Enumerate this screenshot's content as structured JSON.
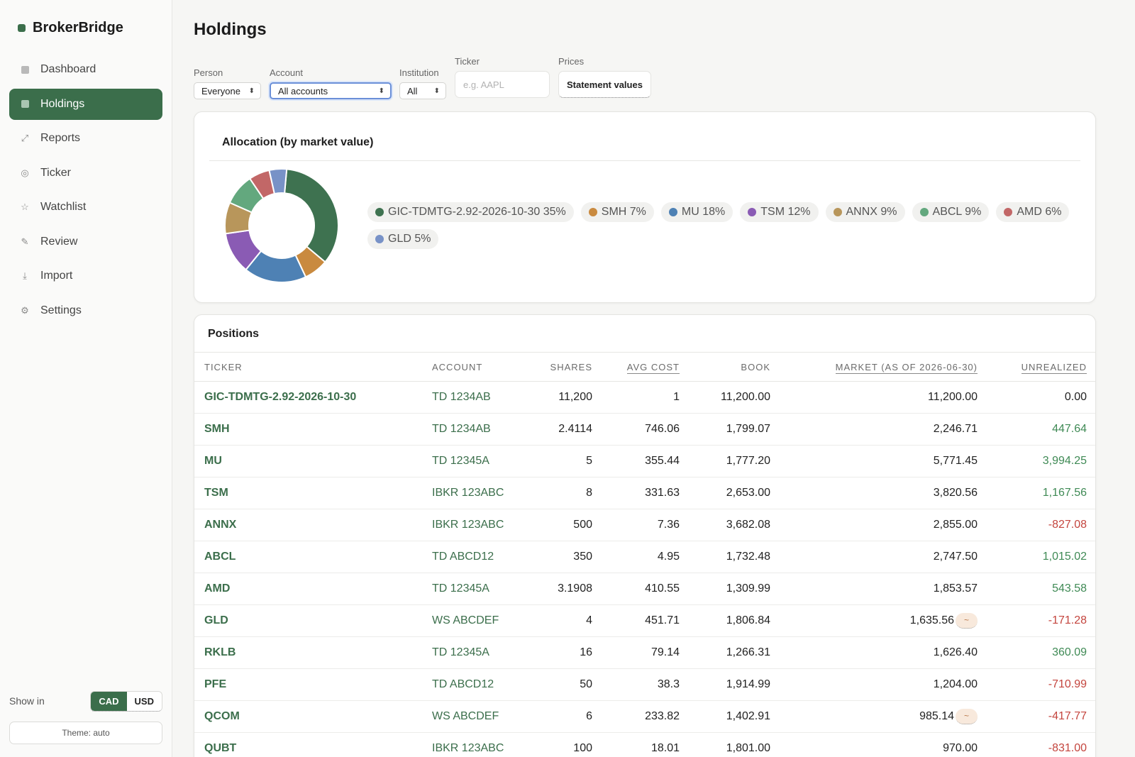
{
  "brand": "BrokerBridge",
  "sidebar": {
    "items": [
      {
        "label": "Dashboard",
        "icon": "square-icon"
      },
      {
        "label": "Holdings",
        "icon": "square-icon",
        "active": true
      },
      {
        "label": "Reports",
        "icon": "trend-icon"
      },
      {
        "label": "Ticker",
        "icon": "circle-icon"
      },
      {
        "label": "Watchlist",
        "icon": "star-icon"
      },
      {
        "label": "Review",
        "icon": "pencil-icon"
      },
      {
        "label": "Import",
        "icon": "download-icon"
      },
      {
        "label": "Settings",
        "icon": "gear-icon"
      }
    ],
    "show_in_label": "Show in",
    "currency": {
      "cad": "CAD",
      "usd": "USD",
      "selected": "CAD"
    },
    "theme": "Theme: auto"
  },
  "page": {
    "title": "Holdings"
  },
  "filters": {
    "person": {
      "label": "Person",
      "value": "Everyone"
    },
    "account": {
      "label": "Account",
      "value": "All accounts"
    },
    "institution": {
      "label": "Institution",
      "value": "All"
    },
    "ticker": {
      "label": "Ticker",
      "placeholder": "e.g. AAPL"
    },
    "prices": {
      "label": "Prices",
      "value": "Statement values"
    }
  },
  "allocation": {
    "title": "Allocation (by market value)",
    "legend": [
      {
        "text": "GIC-TDMTG-2.92-2026-10-30 35%",
        "color": "#3e7250"
      },
      {
        "text": "SMH 7%",
        "color": "#c98a3f"
      },
      {
        "text": "MU 18%",
        "color": "#4e81b4"
      },
      {
        "text": "TSM 12%",
        "color": "#8a5bb4"
      },
      {
        "text": "ANNX 9%",
        "color": "#b8965b"
      },
      {
        "text": "ABCL 9%",
        "color": "#63a87e"
      },
      {
        "text": "AMD 6%",
        "color": "#c26767"
      },
      {
        "text": "GLD 5%",
        "color": "#7892c7"
      }
    ]
  },
  "chart_data": {
    "type": "pie",
    "title": "Allocation (by market value)",
    "categories": [
      "GIC-TDMTG-2.92-2026-10-30",
      "SMH",
      "MU",
      "TSM",
      "ANNX",
      "ABCL",
      "AMD",
      "GLD"
    ],
    "values": [
      35,
      7,
      18,
      12,
      9,
      9,
      6,
      5
    ],
    "colors": [
      "#3e7250",
      "#c98a3f",
      "#4e81b4",
      "#8a5bb4",
      "#b8965b",
      "#63a87e",
      "#c26767",
      "#7892c7"
    ],
    "donut": true
  },
  "positions": {
    "title": "Positions",
    "headers": [
      "TICKER",
      "ACCOUNT",
      "SHARES",
      "AVG COST",
      "BOOK",
      "MARKET (AS OF 2026-06-30)",
      "UNREALIZED"
    ],
    "rows": [
      {
        "ticker": "GIC-TDMTG-2.92-2026-10-30",
        "account": "TD 1234AB",
        "shares": "11,200",
        "avg": "1",
        "book": "11,200.00",
        "market": "11,200.00",
        "unreal": "0.00",
        "sign": "zero"
      },
      {
        "ticker": "SMH",
        "account": "TD 1234AB",
        "shares": "2.4114",
        "avg": "746.06",
        "book": "1,799.07",
        "market": "2,246.71",
        "unreal": "447.64",
        "sign": "pos"
      },
      {
        "ticker": "MU",
        "account": "TD 12345A",
        "shares": "5",
        "avg": "355.44",
        "book": "1,777.20",
        "market": "5,771.45",
        "unreal": "3,994.25",
        "sign": "pos"
      },
      {
        "ticker": "TSM",
        "account": "IBKR 123ABC",
        "shares": "8",
        "avg": "331.63",
        "book": "2,653.00",
        "market": "3,820.56",
        "unreal": "1,167.56",
        "sign": "pos"
      },
      {
        "ticker": "ANNX",
        "account": "IBKR 123ABC",
        "shares": "500",
        "avg": "7.36",
        "book": "3,682.08",
        "market": "2,855.00",
        "unreal": "-827.08",
        "sign": "neg"
      },
      {
        "ticker": "ABCL",
        "account": "TD ABCD12",
        "shares": "350",
        "avg": "4.95",
        "book": "1,732.48",
        "market": "2,747.50",
        "unreal": "1,015.02",
        "sign": "pos"
      },
      {
        "ticker": "AMD",
        "account": "TD 12345A",
        "shares": "3.1908",
        "avg": "410.55",
        "book": "1,309.99",
        "market": "1,853.57",
        "unreal": "543.58",
        "sign": "pos"
      },
      {
        "ticker": "GLD",
        "account": "WS ABCDEF",
        "shares": "4",
        "avg": "451.71",
        "book": "1,806.84",
        "market": "1,635.56",
        "unreal": "-171.28",
        "sign": "neg",
        "approx": "~"
      },
      {
        "ticker": "RKLB",
        "account": "TD 12345A",
        "shares": "16",
        "avg": "79.14",
        "book": "1,266.31",
        "market": "1,626.40",
        "unreal": "360.09",
        "sign": "pos"
      },
      {
        "ticker": "PFE",
        "account": "TD ABCD12",
        "shares": "50",
        "avg": "38.3",
        "book": "1,914.99",
        "market": "1,204.00",
        "unreal": "-710.99",
        "sign": "neg"
      },
      {
        "ticker": "QCOM",
        "account": "WS ABCDEF",
        "shares": "6",
        "avg": "233.82",
        "book": "1,402.91",
        "market": "985.14",
        "unreal": "-417.77",
        "sign": "neg",
        "approx": "~"
      },
      {
        "ticker": "QUBT",
        "account": "IBKR 123ABC",
        "shares": "100",
        "avg": "18.01",
        "book": "1,801.00",
        "market": "970.00",
        "unreal": "-831.00",
        "sign": "neg"
      }
    ]
  }
}
